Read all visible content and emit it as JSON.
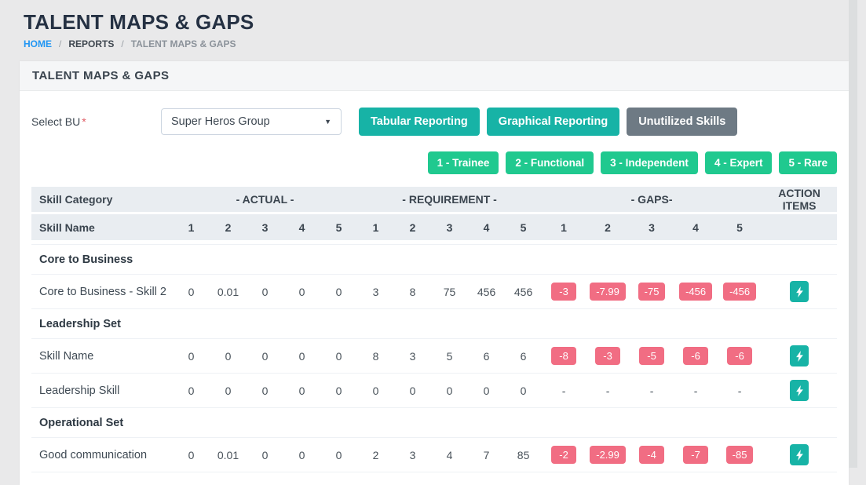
{
  "page": {
    "title": "TALENT MAPS & GAPS",
    "breadcrumb": {
      "home": "HOME",
      "separator": "/",
      "reports": "REPORTS",
      "current": "TALENT MAPS & GAPS"
    }
  },
  "panel": {
    "title": "TALENT MAPS & GAPS"
  },
  "filter": {
    "label": "Select BU",
    "required": "*",
    "selected_value": "Super Heros Group",
    "caret_icon": "▼"
  },
  "actions": {
    "buttons": [
      {
        "label": "Tabular Reporting",
        "variant": "teal"
      },
      {
        "label": "Graphical Reporting",
        "variant": "teal"
      },
      {
        "label": "Unutilized Skills",
        "variant": "gray"
      }
    ]
  },
  "legend": {
    "items": [
      "1 - Trainee",
      "2 - Functional",
      "3 - Independent",
      "4 - Expert",
      "5 - Rare"
    ]
  },
  "table": {
    "group_headers": {
      "skill_category": "Skill Category",
      "actual": "- ACTUAL -",
      "requirement": "- REQUIREMENT -",
      "gaps": "- GAPS-",
      "action_items": "ACTION ITEMS"
    },
    "sub_header": {
      "skill_name": "Skill Name",
      "levels": [
        "1",
        "2",
        "3",
        "4",
        "5"
      ]
    },
    "rows": [
      {
        "type": "category",
        "name": "Core to Business"
      },
      {
        "type": "skill",
        "name": "Core to Business - Skill 2",
        "actual": [
          "0",
          "0.01",
          "0",
          "0",
          "0"
        ],
        "requirement": [
          "3",
          "8",
          "75",
          "456",
          "456"
        ],
        "gaps": [
          "-3",
          "-7.99",
          "-75",
          "-456",
          "-456"
        ]
      },
      {
        "type": "category",
        "name": "Leadership Set"
      },
      {
        "type": "skill",
        "name": "Skill Name",
        "actual": [
          "0",
          "0",
          "0",
          "0",
          "0"
        ],
        "requirement": [
          "8",
          "3",
          "5",
          "6",
          "6"
        ],
        "gaps": [
          "-8",
          "-3",
          "-5",
          "-6",
          "-6"
        ]
      },
      {
        "type": "skill",
        "name": "Leadership Skill",
        "actual": [
          "0",
          "0",
          "0",
          "0",
          "0"
        ],
        "requirement": [
          "0",
          "0",
          "0",
          "0",
          "0"
        ],
        "gaps": [
          "-",
          "-",
          "-",
          "-",
          "-"
        ]
      },
      {
        "type": "category",
        "name": "Operational Set"
      },
      {
        "type": "skill",
        "name": "Good communication",
        "actual": [
          "0",
          "0.01",
          "0",
          "0",
          "0"
        ],
        "requirement": [
          "2",
          "3",
          "4",
          "7",
          "85"
        ],
        "gaps": [
          "-2",
          "-2.99",
          "-4",
          "-7",
          "-85"
        ]
      }
    ],
    "action_icon": "lightning-bolt"
  },
  "colors": {
    "teal_button": "#17b3a6",
    "green_legend": "#20c98f",
    "gray_button": "#6e7a84",
    "gap_badge": "#f16d83",
    "link_blue": "#2196f3",
    "table_header_bg": "#e9edf1"
  }
}
